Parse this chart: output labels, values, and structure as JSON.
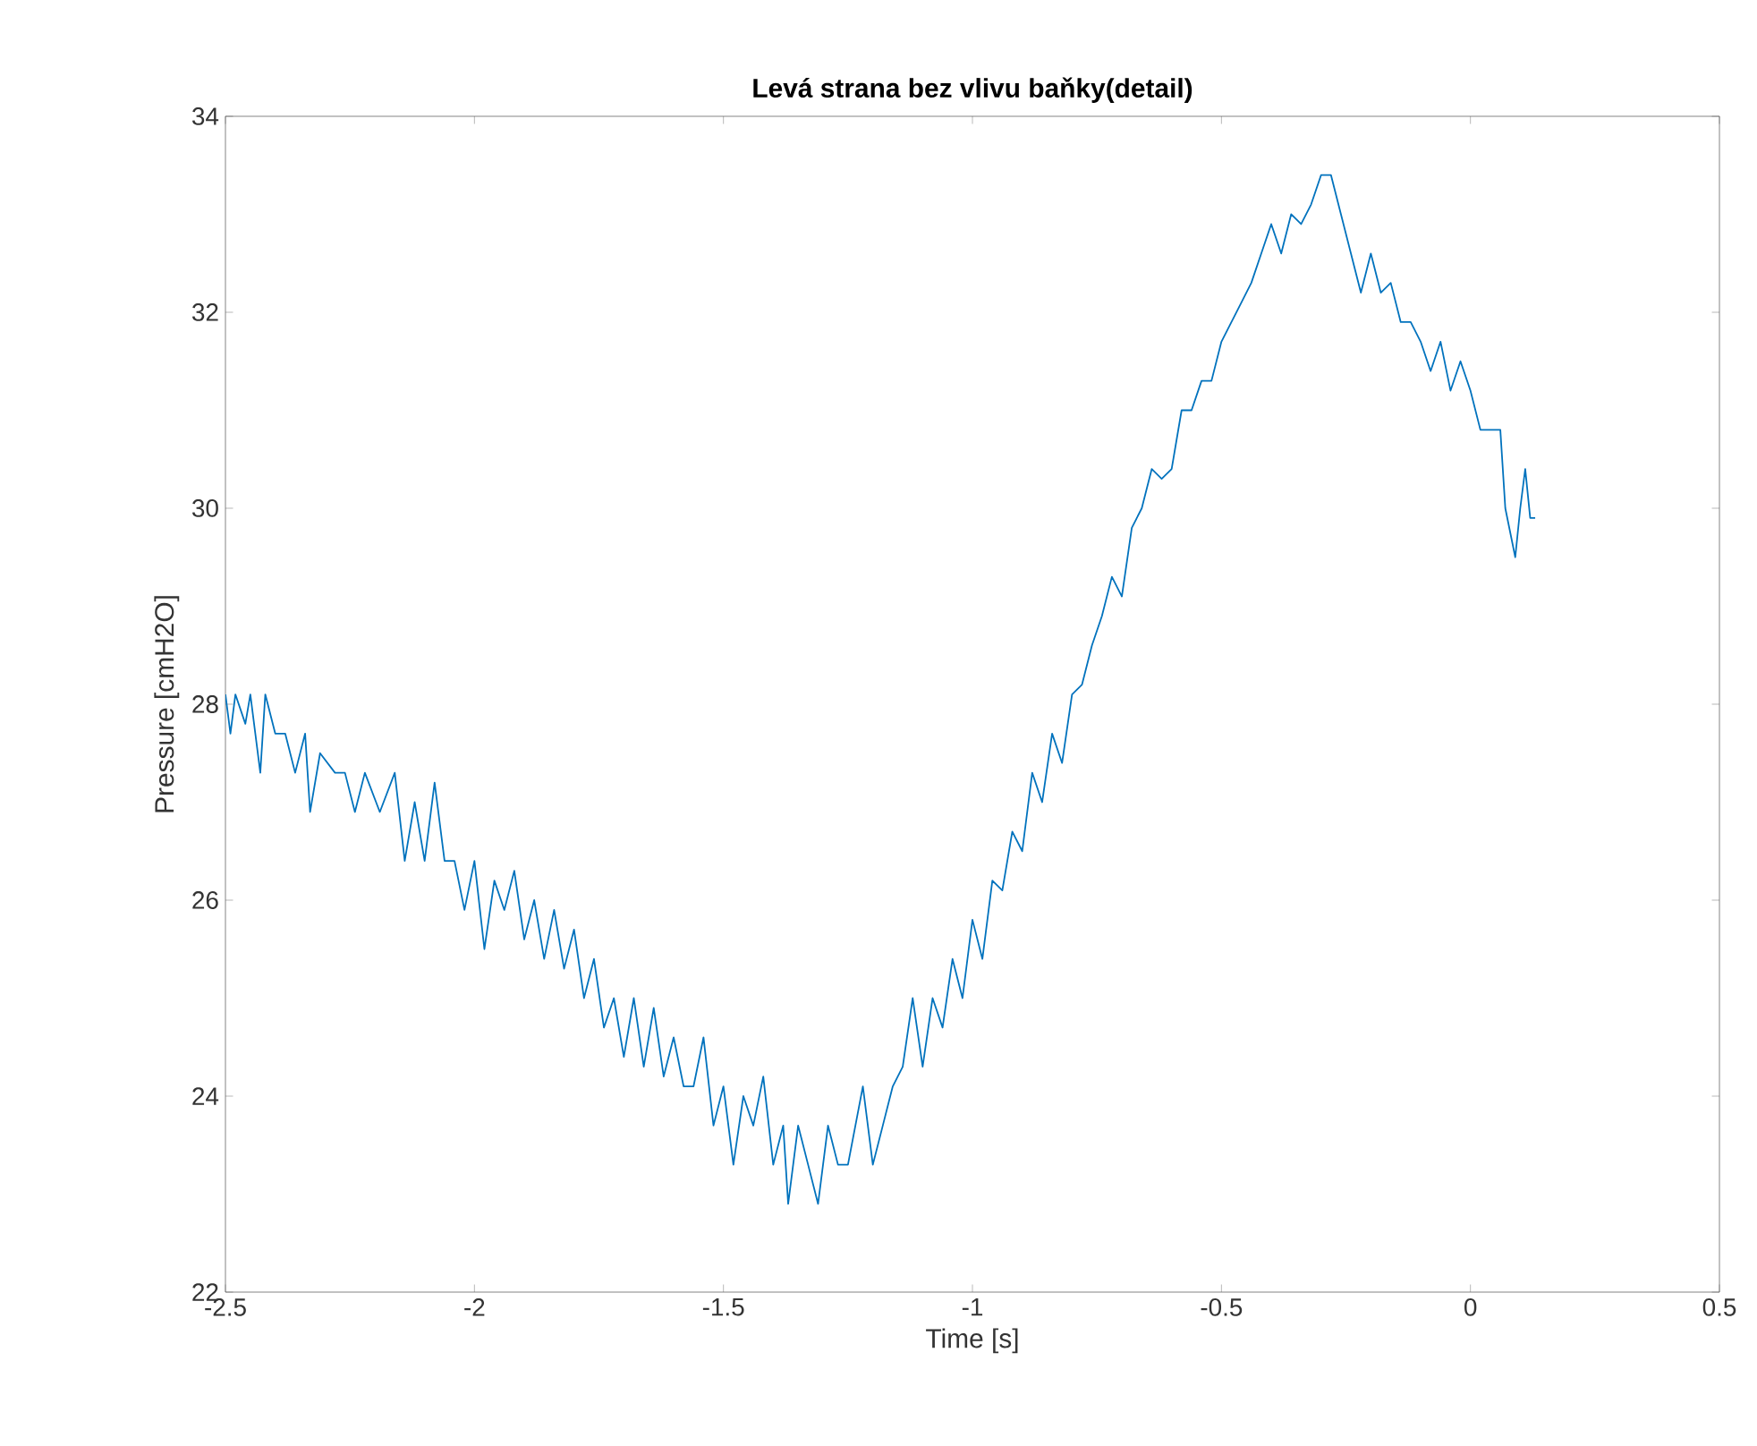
{
  "chart_data": {
    "type": "line",
    "title": "Levá strana bez vlivu baňky(detail)",
    "xlabel": "Time [s]",
    "ylabel": "Pressure [cmH2O]",
    "xlim": [
      -2.5,
      0.5
    ],
    "ylim": [
      22,
      34
    ],
    "xticks": [
      -2.5,
      -2,
      -1.5,
      -1,
      -0.5,
      0,
      0.5
    ],
    "yticks": [
      22,
      24,
      26,
      28,
      30,
      32,
      34
    ],
    "grid": false,
    "marker": "none",
    "line_style": "solid",
    "series": [
      {
        "color": "#0072bd",
        "x": [
          -2.5,
          -2.49,
          -2.48,
          -2.46,
          -2.45,
          -2.43,
          -2.42,
          -2.4,
          -2.38,
          -2.36,
          -2.34,
          -2.33,
          -2.31,
          -2.28,
          -2.26,
          -2.24,
          -2.22,
          -2.19,
          -2.16,
          -2.14,
          -2.12,
          -2.1,
          -2.08,
          -2.06,
          -2.04,
          -2.02,
          -2.0,
          -1.98,
          -1.96,
          -1.94,
          -1.92,
          -1.9,
          -1.88,
          -1.86,
          -1.84,
          -1.82,
          -1.8,
          -1.78,
          -1.76,
          -1.74,
          -1.72,
          -1.7,
          -1.68,
          -1.66,
          -1.64,
          -1.62,
          -1.6,
          -1.58,
          -1.56,
          -1.54,
          -1.52,
          -1.5,
          -1.48,
          -1.46,
          -1.44,
          -1.42,
          -1.4,
          -1.38,
          -1.37,
          -1.35,
          -1.33,
          -1.31,
          -1.29,
          -1.27,
          -1.25,
          -1.22,
          -1.2,
          -1.18,
          -1.16,
          -1.14,
          -1.12,
          -1.1,
          -1.08,
          -1.06,
          -1.04,
          -1.02,
          -1.0,
          -0.98,
          -0.96,
          -0.94,
          -0.92,
          -0.9,
          -0.88,
          -0.86,
          -0.84,
          -0.82,
          -0.8,
          -0.78,
          -0.76,
          -0.74,
          -0.72,
          -0.7,
          -0.68,
          -0.66,
          -0.64,
          -0.62,
          -0.6,
          -0.58,
          -0.56,
          -0.54,
          -0.52,
          -0.5,
          -0.48,
          -0.46,
          -0.44,
          -0.42,
          -0.4,
          -0.38,
          -0.36,
          -0.34,
          -0.32,
          -0.3,
          -0.28,
          -0.26,
          -0.24,
          -0.22,
          -0.2,
          -0.18,
          -0.16,
          -0.14,
          -0.12,
          -0.1,
          -0.08,
          -0.06,
          -0.04,
          -0.02,
          0.0,
          0.02,
          0.06,
          0.07,
          0.09,
          0.1,
          0.11,
          0.12,
          0.13
        ],
        "values": [
          28.1,
          27.7,
          28.1,
          27.8,
          28.1,
          27.3,
          28.1,
          27.7,
          27.7,
          27.3,
          27.7,
          26.9,
          27.5,
          27.3,
          27.3,
          26.9,
          27.3,
          26.9,
          27.3,
          26.4,
          27.0,
          26.4,
          27.2,
          26.4,
          26.4,
          25.9,
          26.4,
          25.5,
          26.2,
          25.9,
          26.3,
          25.6,
          26.0,
          25.4,
          25.9,
          25.3,
          25.7,
          25.0,
          25.4,
          24.7,
          25.0,
          24.4,
          25.0,
          24.3,
          24.9,
          24.2,
          24.6,
          24.1,
          24.1,
          24.6,
          23.7,
          24.1,
          23.3,
          24.0,
          23.7,
          24.2,
          23.3,
          23.7,
          22.9,
          23.7,
          23.3,
          22.9,
          23.7,
          23.3,
          23.3,
          24.1,
          23.3,
          23.7,
          24.1,
          24.3,
          25.0,
          24.3,
          25.0,
          24.7,
          25.4,
          25.0,
          25.8,
          25.4,
          26.2,
          26.1,
          26.7,
          26.5,
          27.3,
          27.0,
          27.7,
          27.4,
          28.1,
          28.2,
          28.6,
          28.9,
          29.3,
          29.1,
          29.8,
          30.0,
          30.4,
          30.3,
          30.4,
          31.0,
          31.0,
          31.3,
          31.3,
          31.7,
          31.9,
          32.1,
          32.3,
          32.6,
          32.9,
          32.6,
          33.0,
          32.9,
          33.1,
          33.4,
          33.4,
          33.0,
          32.6,
          32.2,
          32.6,
          32.2,
          32.3,
          31.9,
          31.9,
          31.7,
          31.4,
          31.7,
          31.2,
          31.5,
          31.2,
          30.8,
          30.8,
          30.0,
          29.5,
          30.0,
          30.4,
          29.9,
          29.9
        ]
      }
    ]
  }
}
